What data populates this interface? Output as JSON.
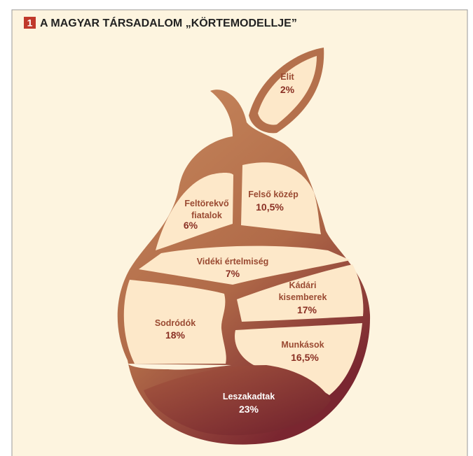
{
  "header": {
    "number": "1",
    "title": "A MAGYAR TÁRSADALOM „KÖRTEMODELLJE”"
  },
  "segments": [
    {
      "name": "Elit",
      "share": "2%"
    },
    {
      "name": "Feltörekvő fiatalok",
      "share": "6%"
    },
    {
      "name": "Felső közép",
      "share": "10,5%"
    },
    {
      "name": "Vidéki értelmiség",
      "share": "7%"
    },
    {
      "name": "Kádári kisemberek",
      "share": "17%"
    },
    {
      "name": "Sodródók",
      "share": "18%"
    },
    {
      "name": "Munkások",
      "share": "16,5%"
    },
    {
      "name": "Leszakadtak",
      "share": "23%"
    }
  ]
}
